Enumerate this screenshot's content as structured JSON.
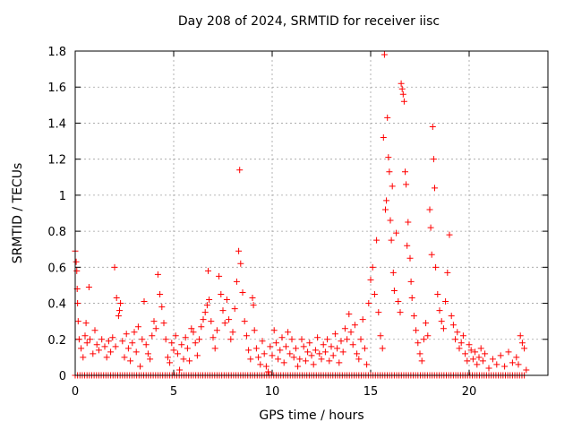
{
  "chart_data": {
    "type": "scatter",
    "title": "Day 208 of 2024, SRMTID for receiver iisc",
    "xlabel": "GPS time / hours",
    "ylabel": "SRMTID / TECUs",
    "xlim": [
      0,
      24
    ],
    "ylim": [
      0,
      1.8
    ],
    "xticks": [
      0,
      5,
      10,
      15,
      20
    ],
    "yticks": [
      0,
      0.2,
      0.4,
      0.6,
      0.8,
      1,
      1.2,
      1.4,
      1.6,
      1.8
    ],
    "grid": true,
    "marker": "+",
    "color": "#ff0000",
    "x_range_data": [
      0,
      22.9
    ],
    "series": [
      {
        "name": "SRMTID",
        "points": [
          [
            0.0,
            0.69
          ],
          [
            0.05,
            0.63
          ],
          [
            0.08,
            0.58
          ],
          [
            0.1,
            0.48
          ],
          [
            0.12,
            0.4
          ],
          [
            0.15,
            0.3
          ],
          [
            0.2,
            0.2
          ],
          [
            0.3,
            0.15
          ],
          [
            0.4,
            0.1
          ],
          [
            0.5,
            0.22
          ],
          [
            0.55,
            0.29
          ],
          [
            0.6,
            0.18
          ],
          [
            0.7,
            0.49
          ],
          [
            0.75,
            0.2
          ],
          [
            0.9,
            0.12
          ],
          [
            1.0,
            0.25
          ],
          [
            1.1,
            0.17
          ],
          [
            1.2,
            0.14
          ],
          [
            1.35,
            0.2
          ],
          [
            1.5,
            0.16
          ],
          [
            1.6,
            0.1
          ],
          [
            1.7,
            0.19
          ],
          [
            1.8,
            0.13
          ],
          [
            1.9,
            0.21
          ],
          [
            2.0,
            0.6
          ],
          [
            2.05,
            0.16
          ],
          [
            2.1,
            0.43
          ],
          [
            2.2,
            0.33
          ],
          [
            2.25,
            0.36
          ],
          [
            2.3,
            0.4
          ],
          [
            2.4,
            0.19
          ],
          [
            2.5,
            0.1
          ],
          [
            2.6,
            0.23
          ],
          [
            2.7,
            0.15
          ],
          [
            2.8,
            0.08
          ],
          [
            2.9,
            0.18
          ],
          [
            3.0,
            0.24
          ],
          [
            3.1,
            0.13
          ],
          [
            3.2,
            0.27
          ],
          [
            3.3,
            0.05
          ],
          [
            3.4,
            0.2
          ],
          [
            3.5,
            0.41
          ],
          [
            3.6,
            0.17
          ],
          [
            3.7,
            0.12
          ],
          [
            3.8,
            0.09
          ],
          [
            3.9,
            0.22
          ],
          [
            4.0,
            0.3
          ],
          [
            4.1,
            0.26
          ],
          [
            4.2,
            0.56
          ],
          [
            4.3,
            0.45
          ],
          [
            4.4,
            0.38
          ],
          [
            4.5,
            0.29
          ],
          [
            4.6,
            0.2
          ],
          [
            4.7,
            0.1
          ],
          [
            4.8,
            0.07
          ],
          [
            4.9,
            0.18
          ],
          [
            5.0,
            0.14
          ],
          [
            5.1,
            0.22
          ],
          [
            5.2,
            0.12
          ],
          [
            5.3,
            0.03
          ],
          [
            5.4,
            0.17
          ],
          [
            5.5,
            0.09
          ],
          [
            5.6,
            0.21
          ],
          [
            5.7,
            0.15
          ],
          [
            5.8,
            0.08
          ],
          [
            5.9,
            0.26
          ],
          [
            6.0,
            0.24
          ],
          [
            6.1,
            0.18
          ],
          [
            6.2,
            0.11
          ],
          [
            6.3,
            0.2
          ],
          [
            6.4,
            0.27
          ],
          [
            6.5,
            0.31
          ],
          [
            6.6,
            0.35
          ],
          [
            6.7,
            0.39
          ],
          [
            6.75,
            0.58
          ],
          [
            6.8,
            0.42
          ],
          [
            6.9,
            0.3
          ],
          [
            7.0,
            0.21
          ],
          [
            7.1,
            0.15
          ],
          [
            7.2,
            0.25
          ],
          [
            7.3,
            0.55
          ],
          [
            7.4,
            0.45
          ],
          [
            7.5,
            0.36
          ],
          [
            7.6,
            0.29
          ],
          [
            7.7,
            0.42
          ],
          [
            7.8,
            0.31
          ],
          [
            7.9,
            0.2
          ],
          [
            8.0,
            0.24
          ],
          [
            8.1,
            0.37
          ],
          [
            8.2,
            0.52
          ],
          [
            8.3,
            0.69
          ],
          [
            8.35,
            1.14
          ],
          [
            8.4,
            0.62
          ],
          [
            8.5,
            0.46
          ],
          [
            8.6,
            0.3
          ],
          [
            8.7,
            0.22
          ],
          [
            8.8,
            0.14
          ],
          [
            8.9,
            0.09
          ],
          [
            9.0,
            0.43
          ],
          [
            9.05,
            0.39
          ],
          [
            9.1,
            0.25
          ],
          [
            9.2,
            0.15
          ],
          [
            9.3,
            0.1
          ],
          [
            9.4,
            0.06
          ],
          [
            9.5,
            0.19
          ],
          [
            9.6,
            0.12
          ],
          [
            9.7,
            0.05
          ],
          [
            9.8,
            0.02
          ],
          [
            9.9,
            0.16
          ],
          [
            10.0,
            0.11
          ],
          [
            10.1,
            0.25
          ],
          [
            10.2,
            0.18
          ],
          [
            10.3,
            0.09
          ],
          [
            10.4,
            0.14
          ],
          [
            10.5,
            0.21
          ],
          [
            10.6,
            0.07
          ],
          [
            10.7,
            0.16
          ],
          [
            10.8,
            0.24
          ],
          [
            10.9,
            0.12
          ],
          [
            11.0,
            0.2
          ],
          [
            11.1,
            0.1
          ],
          [
            11.2,
            0.15
          ],
          [
            11.3,
            0.05
          ],
          [
            11.4,
            0.09
          ],
          [
            11.5,
            0.2
          ],
          [
            11.6,
            0.16
          ],
          [
            11.7,
            0.08
          ],
          [
            11.8,
            0.13
          ],
          [
            11.9,
            0.18
          ],
          [
            12.0,
            0.11
          ],
          [
            12.1,
            0.06
          ],
          [
            12.2,
            0.14
          ],
          [
            12.3,
            0.21
          ],
          [
            12.4,
            0.12
          ],
          [
            12.5,
            0.09
          ],
          [
            12.6,
            0.17
          ],
          [
            12.7,
            0.13
          ],
          [
            12.8,
            0.2
          ],
          [
            12.9,
            0.08
          ],
          [
            13.0,
            0.16
          ],
          [
            13.1,
            0.11
          ],
          [
            13.2,
            0.23
          ],
          [
            13.3,
            0.15
          ],
          [
            13.4,
            0.07
          ],
          [
            13.5,
            0.19
          ],
          [
            13.6,
            0.13
          ],
          [
            13.7,
            0.26
          ],
          [
            13.8,
            0.2
          ],
          [
            13.9,
            0.34
          ],
          [
            14.0,
            0.24
          ],
          [
            14.1,
            0.17
          ],
          [
            14.2,
            0.28
          ],
          [
            14.3,
            0.12
          ],
          [
            14.4,
            0.09
          ],
          [
            14.5,
            0.2
          ],
          [
            14.6,
            0.31
          ],
          [
            14.7,
            0.15
          ],
          [
            14.8,
            0.06
          ],
          [
            14.9,
            0.4
          ],
          [
            15.0,
            0.53
          ],
          [
            15.1,
            0.6
          ],
          [
            15.2,
            0.45
          ],
          [
            15.3,
            0.75
          ],
          [
            15.4,
            0.35
          ],
          [
            15.5,
            0.22
          ],
          [
            15.6,
            0.15
          ],
          [
            15.65,
            1.32
          ],
          [
            15.7,
            1.78
          ],
          [
            15.75,
            0.92
          ],
          [
            15.8,
            0.97
          ],
          [
            15.85,
            1.43
          ],
          [
            15.9,
            1.21
          ],
          [
            15.95,
            1.13
          ],
          [
            16.0,
            0.86
          ],
          [
            16.05,
            0.75
          ],
          [
            16.1,
            1.05
          ],
          [
            16.15,
            0.57
          ],
          [
            16.2,
            0.47
          ],
          [
            16.3,
            0.79
          ],
          [
            16.4,
            0.41
          ],
          [
            16.5,
            0.35
          ],
          [
            16.55,
            1.62
          ],
          [
            16.6,
            1.59
          ],
          [
            16.65,
            1.56
          ],
          [
            16.7,
            1.52
          ],
          [
            16.75,
            1.13
          ],
          [
            16.8,
            1.06
          ],
          [
            16.85,
            0.72
          ],
          [
            16.9,
            0.85
          ],
          [
            17.0,
            0.65
          ],
          [
            17.05,
            0.52
          ],
          [
            17.1,
            0.43
          ],
          [
            17.2,
            0.33
          ],
          [
            17.3,
            0.25
          ],
          [
            17.4,
            0.18
          ],
          [
            17.5,
            0.12
          ],
          [
            17.6,
            0.08
          ],
          [
            17.7,
            0.2
          ],
          [
            17.8,
            0.29
          ],
          [
            17.9,
            0.22
          ],
          [
            18.0,
            0.92
          ],
          [
            18.05,
            0.82
          ],
          [
            18.1,
            0.67
          ],
          [
            18.15,
            1.38
          ],
          [
            18.2,
            1.2
          ],
          [
            18.25,
            1.04
          ],
          [
            18.3,
            0.6
          ],
          [
            18.4,
            0.45
          ],
          [
            18.5,
            0.36
          ],
          [
            18.6,
            0.3
          ],
          [
            18.7,
            0.26
          ],
          [
            18.8,
            0.41
          ],
          [
            18.9,
            0.57
          ],
          [
            19.0,
            0.78
          ],
          [
            19.1,
            0.33
          ],
          [
            19.2,
            0.28
          ],
          [
            19.3,
            0.2
          ],
          [
            19.4,
            0.24
          ],
          [
            19.5,
            0.15
          ],
          [
            19.6,
            0.18
          ],
          [
            19.7,
            0.22
          ],
          [
            19.8,
            0.12
          ],
          [
            19.9,
            0.08
          ],
          [
            20.0,
            0.17
          ],
          [
            20.1,
            0.14
          ],
          [
            20.2,
            0.09
          ],
          [
            20.3,
            0.13
          ],
          [
            20.4,
            0.06
          ],
          [
            20.5,
            0.1
          ],
          [
            20.6,
            0.15
          ],
          [
            20.7,
            0.08
          ],
          [
            20.8,
            0.12
          ],
          [
            21.0,
            0.04
          ],
          [
            21.2,
            0.09
          ],
          [
            21.4,
            0.06
          ],
          [
            21.6,
            0.11
          ],
          [
            21.8,
            0.05
          ],
          [
            22.0,
            0.13
          ],
          [
            22.2,
            0.07
          ],
          [
            22.4,
            0.1
          ],
          [
            22.5,
            0.06
          ],
          [
            22.6,
            0.22
          ],
          [
            22.7,
            0.18
          ],
          [
            22.8,
            0.15
          ],
          [
            22.9,
            0.03
          ]
        ]
      }
    ]
  }
}
